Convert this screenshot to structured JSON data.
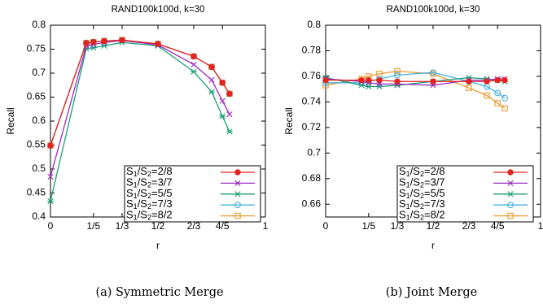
{
  "chart_data": [
    {
      "type": "line",
      "title": "RAND100k100d, k=30",
      "xlabel": "r",
      "ylabel": "Recall",
      "caption": "(a)  Symmetric Merge",
      "xlim": [
        0,
        1
      ],
      "ylim": [
        0.4,
        0.8
      ],
      "xticks": [
        {
          "value": 0,
          "label": "0"
        },
        {
          "value": 0.2,
          "label": "1/5"
        },
        {
          "value": 0.3333,
          "label": "1/3"
        },
        {
          "value": 0.5,
          "label": "1/2"
        },
        {
          "value": 0.6667,
          "label": "2/3"
        },
        {
          "value": 0.8,
          "label": "4/5"
        },
        {
          "value": 1,
          "label": "1"
        }
      ],
      "yticks": [
        {
          "value": 0.4,
          "label": "0.4"
        },
        {
          "value": 0.45,
          "label": "0.45"
        },
        {
          "value": 0.5,
          "label": "0.5"
        },
        {
          "value": 0.55,
          "label": "0.55"
        },
        {
          "value": 0.6,
          "label": "0.6"
        },
        {
          "value": 0.65,
          "label": "0.65"
        },
        {
          "value": 0.7,
          "label": "0.7"
        },
        {
          "value": 0.75,
          "label": "0.75"
        },
        {
          "value": 0.8,
          "label": "0.8"
        }
      ],
      "grid": false,
      "legend_position": "bottom-right",
      "x": [
        0,
        0.1667,
        0.2,
        0.25,
        0.3333,
        0.5,
        0.6667,
        0.75,
        0.8,
        0.8333
      ],
      "series": [
        {
          "name": "S1/S2=2/8",
          "color": "#e8231f",
          "marker": "filled-circle",
          "values": [
            0.549,
            0.763,
            0.765,
            0.767,
            0.769,
            0.761,
            0.735,
            0.713,
            0.68,
            0.657
          ]
        },
        {
          "name": "S1/S2=3/7",
          "color": "#9a2bc1",
          "marker": "x",
          "values": [
            0.484,
            0.757,
            0.76,
            0.764,
            0.768,
            0.759,
            0.718,
            0.686,
            0.642,
            0.614
          ]
        },
        {
          "name": "S1/S2=5/5",
          "color": "#1a9e76",
          "marker": "asterisk",
          "values": [
            0.433,
            0.751,
            0.753,
            0.757,
            0.764,
            0.757,
            0.703,
            0.661,
            0.61,
            0.578
          ]
        },
        {
          "name": "S1/S2=7/3",
          "color": "#43b3e0",
          "marker": "open-circle",
          "values": [
            0.549,
            0.763,
            0.765,
            0.767,
            0.769,
            0.761,
            0.735,
            0.713,
            0.68,
            0.657
          ]
        },
        {
          "name": "S1/S2=8/2",
          "color": "#ec9b2c",
          "marker": "open-square",
          "values": [
            0.549,
            0.763,
            0.765,
            0.767,
            0.769,
            0.761,
            0.735,
            0.713,
            0.68,
            0.657
          ]
        }
      ]
    },
    {
      "type": "line",
      "title": "RAND100k100d, k=30",
      "xlabel": "r",
      "ylabel": "Recall",
      "caption": "(b)  Joint Merge",
      "xlim": [
        0,
        1
      ],
      "ylim": [
        0.65,
        0.8
      ],
      "xticks": [
        {
          "value": 0,
          "label": "0"
        },
        {
          "value": 0.2,
          "label": "1/5"
        },
        {
          "value": 0.3333,
          "label": "1/3"
        },
        {
          "value": 0.5,
          "label": "1/2"
        },
        {
          "value": 0.6667,
          "label": "2/3"
        },
        {
          "value": 0.8,
          "label": "4/5"
        },
        {
          "value": 1,
          "label": "1"
        }
      ],
      "yticks": [
        {
          "value": 0.66,
          "label": "0.66"
        },
        {
          "value": 0.68,
          "label": "0.68"
        },
        {
          "value": 0.7,
          "label": "0.7"
        },
        {
          "value": 0.72,
          "label": "0.72"
        },
        {
          "value": 0.74,
          "label": "0.74"
        },
        {
          "value": 0.76,
          "label": "0.76"
        },
        {
          "value": 0.78,
          "label": "0.78"
        },
        {
          "value": 0.8,
          "label": "0.8"
        }
      ],
      "grid": false,
      "legend_position": "bottom-right",
      "x": [
        0,
        0.1667,
        0.2,
        0.25,
        0.3333,
        0.5,
        0.6667,
        0.75,
        0.8,
        0.8333
      ],
      "series": [
        {
          "name": "S1/S2=2/8",
          "color": "#e8231f",
          "marker": "filled-circle",
          "values": [
            0.757,
            0.757,
            0.757,
            0.757,
            0.756,
            0.756,
            0.756,
            0.756,
            0.757,
            0.757
          ]
        },
        {
          "name": "S1/S2=3/7",
          "color": "#9a2bc1",
          "marker": "x",
          "values": [
            0.758,
            0.756,
            0.755,
            0.754,
            0.754,
            0.753,
            0.757,
            0.757,
            0.758,
            0.758
          ]
        },
        {
          "name": "S1/S2=5/5",
          "color": "#1a9e76",
          "marker": "asterisk",
          "values": [
            0.759,
            0.753,
            0.752,
            0.752,
            0.753,
            0.756,
            0.759,
            0.758,
            0.757,
            0.756
          ]
        },
        {
          "name": "S1/S2=7/3",
          "color": "#43b3e0",
          "marker": "open-circle",
          "values": [
            0.755,
            0.755,
            0.756,
            0.758,
            0.761,
            0.763,
            0.756,
            0.752,
            0.747,
            0.743
          ]
        },
        {
          "name": "S1/S2=8/2",
          "color": "#ec9b2c",
          "marker": "open-square",
          "values": [
            0.753,
            0.758,
            0.76,
            0.762,
            0.764,
            0.762,
            0.751,
            0.745,
            0.739,
            0.735
          ]
        }
      ]
    }
  ]
}
